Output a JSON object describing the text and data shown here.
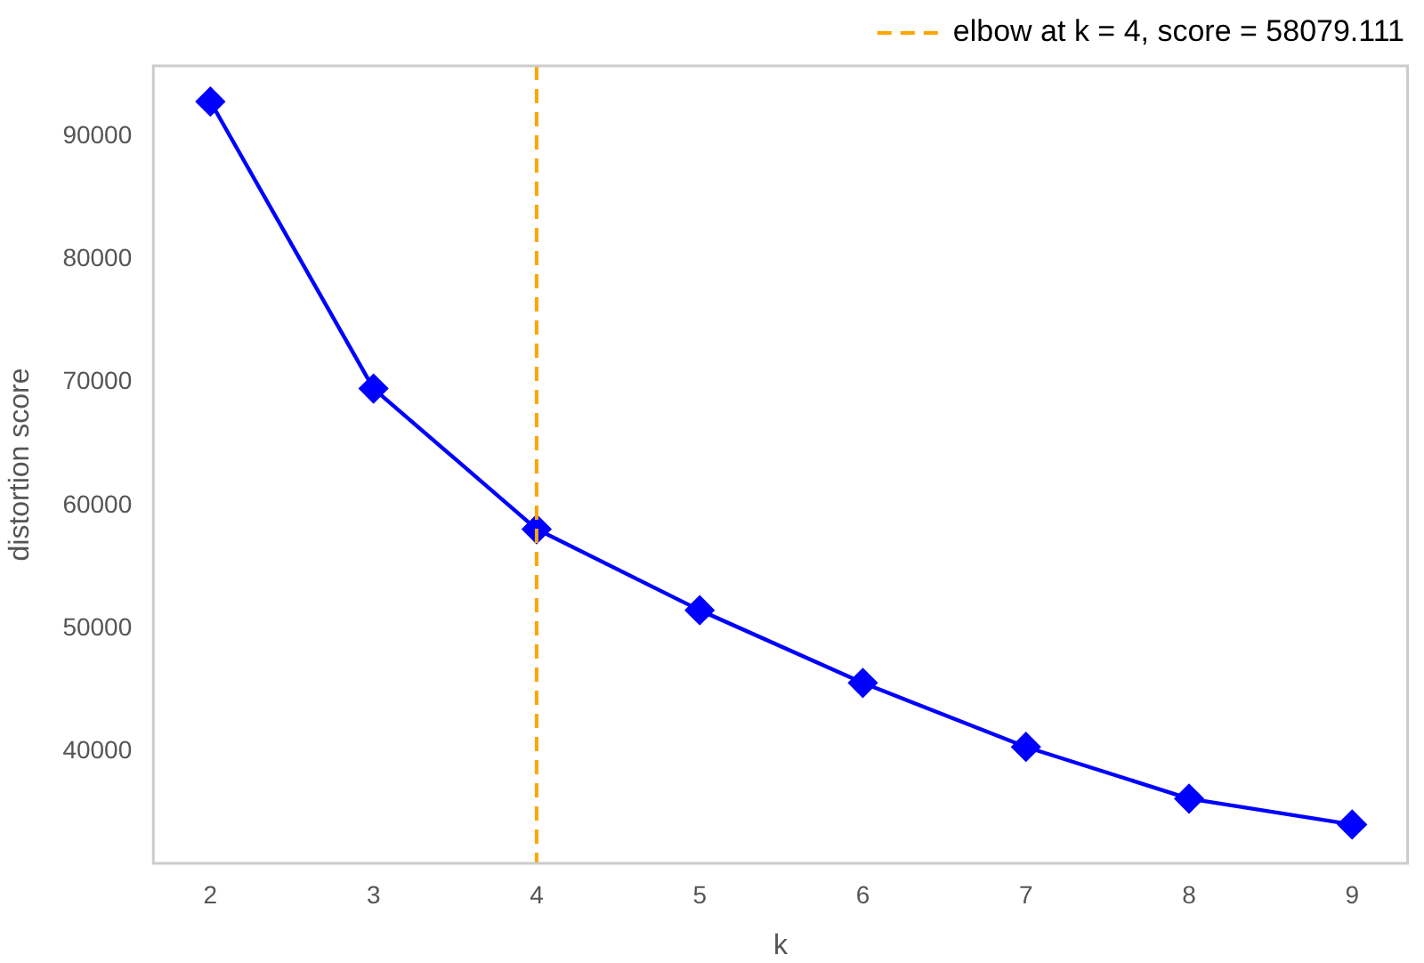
{
  "chart_data": {
    "type": "line",
    "xlabel": "k",
    "ylabel": "distortion score",
    "x": [
      2,
      3,
      4,
      5,
      6,
      7,
      8,
      9
    ],
    "series": [
      {
        "color": "#0000ff",
        "values": [
          92800,
          69500,
          58079,
          51500,
          45600,
          40400,
          36200,
          34100
        ]
      }
    ],
    "xlim": [
      1.65,
      9.34
    ],
    "xticks": [
      2,
      3,
      4,
      5,
      6,
      7,
      8,
      9
    ],
    "ylim": [
      30950,
      95700
    ],
    "yticks": [
      40000,
      50000,
      60000,
      70000,
      80000,
      90000
    ],
    "ref_lines": [
      {
        "axis": "x",
        "value": 4,
        "label": "elbow at k = 4, score = 58079.111",
        "color": "#ffa500",
        "line_style": "dashed"
      }
    ],
    "grid": false,
    "legend": "top right",
    "marker": "diamond",
    "line_style": "solid"
  }
}
